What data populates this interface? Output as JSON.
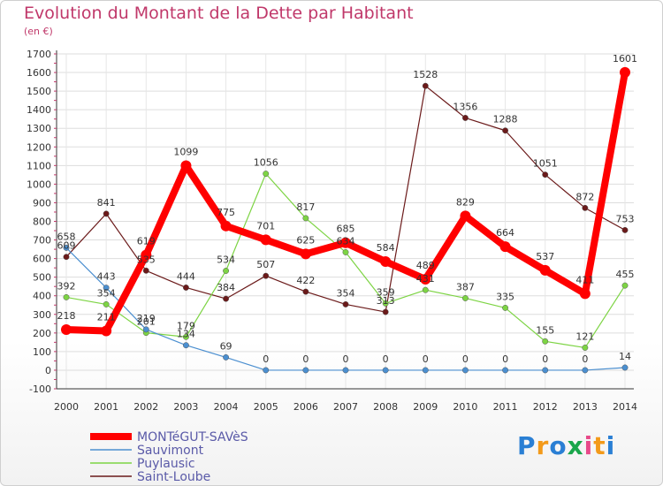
{
  "chart_data": {
    "type": "line",
    "title": "Evolution du Montant de la Dette par Habitant",
    "subtitle": "(en €)",
    "x": [
      "2000",
      "2001",
      "2002",
      "2003",
      "2004",
      "2005",
      "2006",
      "2007",
      "2008",
      "2009",
      "2010",
      "2011",
      "2012",
      "2013",
      "2014"
    ],
    "ylim": [
      -100,
      1700
    ],
    "yticks": [
      -100,
      0,
      100,
      200,
      300,
      400,
      500,
      600,
      700,
      800,
      900,
      1000,
      1100,
      1200,
      1300,
      1400,
      1500,
      1600,
      1700
    ],
    "grid": true,
    "legend_position": "bottom-left",
    "series": [
      {
        "name": "MONTéGUT-SAVèS",
        "color": "#ff0000",
        "values": [
          218,
          211,
          619,
          1099,
          775,
          701,
          625,
          685,
          584,
          489,
          829,
          664,
          537,
          411,
          1601
        ]
      },
      {
        "name": "Sauvimont",
        "color": "#4b8fd0",
        "values": [
          658,
          443,
          219,
          134,
          69,
          0,
          0,
          0,
          0,
          0,
          0,
          0,
          0,
          0,
          14
        ]
      },
      {
        "name": "Puylausic",
        "color": "#7dd444",
        "values": [
          392,
          354,
          201,
          179,
          534,
          1056,
          817,
          634,
          359,
          431,
          387,
          335,
          155,
          121,
          455
        ]
      },
      {
        "name": "Saint-Loube",
        "color": "#6b1a1a",
        "values": [
          609,
          841,
          535,
          444,
          384,
          507,
          422,
          354,
          313,
          1528,
          1356,
          1288,
          1051,
          872,
          753
        ]
      }
    ]
  },
  "brand": {
    "letters": [
      "P",
      "r",
      "o",
      "x",
      "i",
      "t",
      "i"
    ],
    "colors": [
      "#2a7fd4",
      "#f39a1a",
      "#2a7fd4",
      "#1aa64b",
      "#e84a8a",
      "#f39a1a",
      "#2a7fd4"
    ]
  }
}
